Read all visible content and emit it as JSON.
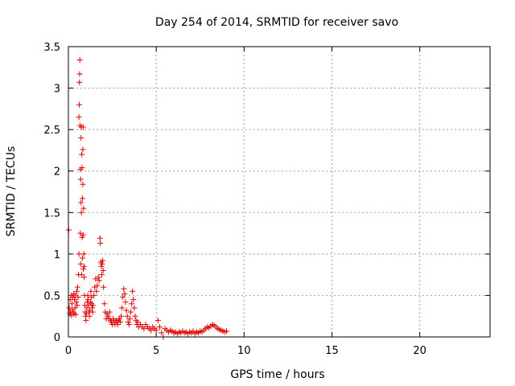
{
  "chart_data": {
    "type": "scatter",
    "title": "Day 254 of 2014, SRMTID for receiver savo",
    "xlabel": "GPS time / hours",
    "ylabel": "SRMTID / TECUs",
    "xlim": [
      0,
      24
    ],
    "ylim": [
      0,
      3.5
    ],
    "grid": true,
    "marker": "+",
    "marker_color": "#e00000",
    "x_ticks": [
      0,
      5,
      10,
      15,
      20
    ],
    "x_tick_labels": [
      "0",
      "5",
      "10",
      "15",
      "20"
    ],
    "y_ticks": [
      0,
      0.5,
      1,
      1.5,
      2,
      2.5,
      3,
      3.5
    ],
    "y_tick_labels": [
      "0",
      "0.5",
      "1",
      "1.5",
      "2",
      "2.5",
      "3",
      "3.5"
    ],
    "series": [
      {
        "name": "SRMTID",
        "points": [
          [
            0.02,
            1.29
          ],
          [
            0.05,
            0.35
          ],
          [
            0.08,
            0.28
          ],
          [
            0.1,
            0.45
          ],
          [
            0.12,
            0.3
          ],
          [
            0.15,
            0.5
          ],
          [
            0.18,
            0.26
          ],
          [
            0.2,
            0.4
          ],
          [
            0.22,
            0.33
          ],
          [
            0.25,
            0.48
          ],
          [
            0.28,
            0.3
          ],
          [
            0.3,
            0.52
          ],
          [
            0.32,
            0.28
          ],
          [
            0.35,
            0.45
          ],
          [
            0.38,
            0.35
          ],
          [
            0.4,
            0.5
          ],
          [
            0.42,
            0.27
          ],
          [
            0.45,
            0.42
          ],
          [
            0.48,
            0.55
          ],
          [
            0.5,
            0.38
          ],
          [
            0.52,
            0.6
          ],
          [
            0.55,
            0.48
          ],
          [
            0.58,
            0.75
          ],
          [
            0.6,
            1.0
          ],
          [
            0.6,
            2.65
          ],
          [
            0.62,
            2.8
          ],
          [
            0.63,
            3.07
          ],
          [
            0.64,
            3.17
          ],
          [
            0.65,
            3.34
          ],
          [
            0.66,
            2.55
          ],
          [
            0.68,
            2.02
          ],
          [
            0.68,
            1.25
          ],
          [
            0.7,
            1.9
          ],
          [
            0.7,
            0.88
          ],
          [
            0.72,
            2.4
          ],
          [
            0.72,
            1.62
          ],
          [
            0.74,
            2.53
          ],
          [
            0.74,
            1.5
          ],
          [
            0.75,
            0.75
          ],
          [
            0.76,
            2.2
          ],
          [
            0.78,
            2.04
          ],
          [
            0.78,
            1.2
          ],
          [
            0.8,
            1.67
          ],
          [
            0.8,
            0.95
          ],
          [
            0.82,
            2.26
          ],
          [
            0.82,
            1.84
          ],
          [
            0.84,
            2.53
          ],
          [
            0.84,
            1.23
          ],
          [
            0.85,
            0.82
          ],
          [
            0.86,
            1.55
          ],
          [
            0.88,
            1.0
          ],
          [
            0.9,
            0.85
          ],
          [
            0.9,
            0.72
          ],
          [
            0.92,
            0.5
          ],
          [
            0.94,
            0.38
          ],
          [
            0.96,
            0.3
          ],
          [
            0.98,
            0.25
          ],
          [
            1.0,
            0.2
          ],
          [
            1.02,
            0.28
          ],
          [
            1.05,
            0.35
          ],
          [
            1.08,
            0.42
          ],
          [
            1.1,
            0.5
          ],
          [
            1.12,
            0.45
          ],
          [
            1.15,
            0.38
          ],
          [
            1.18,
            0.3
          ],
          [
            1.2,
            0.25
          ],
          [
            1.22,
            0.32
          ],
          [
            1.25,
            0.42
          ],
          [
            1.28,
            0.55
          ],
          [
            1.3,
            0.48
          ],
          [
            1.32,
            0.4
          ],
          [
            1.35,
            0.35
          ],
          [
            1.38,
            0.3
          ],
          [
            1.4,
            0.38
          ],
          [
            1.45,
            0.5
          ],
          [
            1.5,
            0.6
          ],
          [
            1.55,
            0.7
          ],
          [
            1.6,
            0.55
          ],
          [
            1.65,
            0.62
          ],
          [
            1.7,
            0.72
          ],
          [
            1.75,
            0.68
          ],
          [
            1.8,
            1.19
          ],
          [
            1.82,
            1.13
          ],
          [
            1.85,
            0.9
          ],
          [
            1.88,
            0.85
          ],
          [
            1.9,
            0.75
          ],
          [
            1.92,
            0.88
          ],
          [
            1.95,
            0.92
          ],
          [
            1.98,
            0.8
          ],
          [
            2.0,
            0.6
          ],
          [
            2.05,
            0.4
          ],
          [
            2.1,
            0.3
          ],
          [
            2.15,
            0.22
          ],
          [
            2.2,
            0.28
          ],
          [
            2.25,
            0.25
          ],
          [
            2.3,
            0.22
          ],
          [
            2.35,
            0.3
          ],
          [
            2.4,
            0.2
          ],
          [
            2.45,
            0.18
          ],
          [
            2.5,
            0.15
          ],
          [
            2.55,
            0.22
          ],
          [
            2.6,
            0.18
          ],
          [
            2.65,
            0.15
          ],
          [
            2.7,
            0.2
          ],
          [
            2.75,
            0.18
          ],
          [
            2.8,
            0.15
          ],
          [
            2.85,
            0.2
          ],
          [
            2.9,
            0.22
          ],
          [
            2.95,
            0.18
          ],
          [
            3.0,
            0.25
          ],
          [
            3.05,
            0.35
          ],
          [
            3.1,
            0.48
          ],
          [
            3.15,
            0.58
          ],
          [
            3.2,
            0.52
          ],
          [
            3.25,
            0.42
          ],
          [
            3.3,
            0.32
          ],
          [
            3.35,
            0.25
          ],
          [
            3.4,
            0.18
          ],
          [
            3.45,
            0.15
          ],
          [
            3.5,
            0.22
          ],
          [
            3.55,
            0.3
          ],
          [
            3.6,
            0.4
          ],
          [
            3.65,
            0.55
          ],
          [
            3.7,
            0.45
          ],
          [
            3.75,
            0.35
          ],
          [
            3.8,
            0.25
          ],
          [
            3.85,
            0.2
          ],
          [
            3.9,
            0.15
          ],
          [
            3.95,
            0.18
          ],
          [
            4.0,
            0.12
          ],
          [
            4.1,
            0.15
          ],
          [
            4.2,
            0.12
          ],
          [
            4.3,
            0.1
          ],
          [
            4.4,
            0.15
          ],
          [
            4.5,
            0.12
          ],
          [
            4.6,
            0.1
          ],
          [
            4.7,
            0.08
          ],
          [
            4.8,
            0.12
          ],
          [
            4.9,
            0.1
          ],
          [
            5.0,
            0.08
          ],
          [
            5.1,
            0.2
          ],
          [
            5.2,
            0.12
          ],
          [
            5.3,
            0.05
          ],
          [
            5.4,
            0.0
          ],
          [
            5.5,
            0.1
          ],
          [
            5.6,
            0.08
          ],
          [
            5.7,
            0.06
          ],
          [
            5.8,
            0.08
          ],
          [
            5.9,
            0.07
          ],
          [
            6.0,
            0.05
          ],
          [
            6.1,
            0.06
          ],
          [
            6.2,
            0.04
          ],
          [
            6.3,
            0.06
          ],
          [
            6.4,
            0.05
          ],
          [
            6.5,
            0.07
          ],
          [
            6.6,
            0.05
          ],
          [
            6.7,
            0.06
          ],
          [
            6.8,
            0.04
          ],
          [
            6.9,
            0.06
          ],
          [
            7.0,
            0.05
          ],
          [
            7.1,
            0.07
          ],
          [
            7.2,
            0.04
          ],
          [
            7.3,
            0.06
          ],
          [
            7.4,
            0.05
          ],
          [
            7.5,
            0.07
          ],
          [
            7.6,
            0.06
          ],
          [
            7.7,
            0.08
          ],
          [
            7.8,
            0.1
          ],
          [
            7.9,
            0.12
          ],
          [
            8.0,
            0.11
          ],
          [
            8.1,
            0.13
          ],
          [
            8.2,
            0.15
          ],
          [
            8.3,
            0.14
          ],
          [
            8.4,
            0.12
          ],
          [
            8.5,
            0.1
          ],
          [
            8.6,
            0.09
          ],
          [
            8.7,
            0.08
          ],
          [
            8.8,
            0.07
          ],
          [
            8.9,
            0.06
          ],
          [
            9.0,
            0.07
          ]
        ]
      }
    ]
  }
}
